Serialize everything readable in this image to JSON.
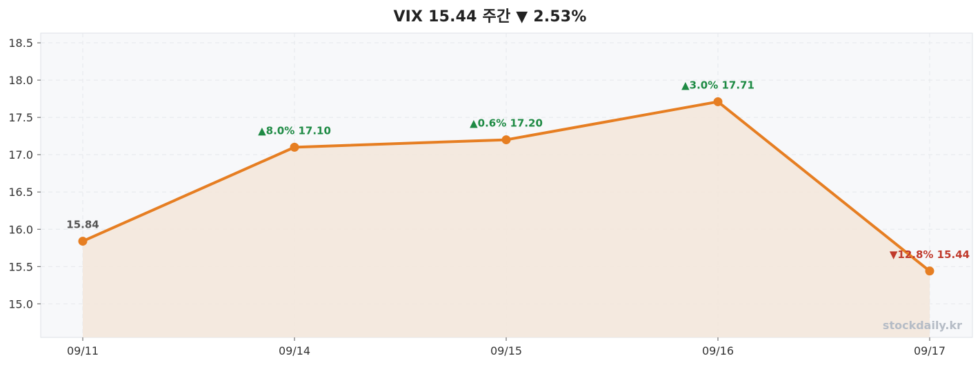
{
  "title": "VIX  15.44  주간 ▼ 2.53%",
  "watermark": "stockdaily.kr",
  "colors": {
    "line": "#e67e22",
    "area": "#f3e7dc",
    "plot_bg": "#f7f8fa",
    "up": "#1e8a44",
    "down": "#c0392b",
    "neutral": "#555555",
    "grid": "#e6e8ec"
  },
  "chart_data": {
    "type": "area",
    "title": "VIX  15.44  주간 ▼ 2.53%",
    "xlabel": "",
    "ylabel": "",
    "categories": [
      "09/11",
      "09/14",
      "09/15",
      "09/16",
      "09/17"
    ],
    "values": [
      15.84,
      17.1,
      17.2,
      17.71,
      15.44
    ],
    "point_labels": [
      "15.84",
      "▲8.0%  17.10",
      "▲0.6%  17.20",
      "▲3.0%  17.71",
      "▼12.8%  15.44"
    ],
    "label_directions": [
      "neutral",
      "up",
      "up",
      "up",
      "down"
    ],
    "ylim": [
      14.55,
      18.63
    ],
    "yticks": [
      "15.0",
      "15.5",
      "16.0",
      "16.5",
      "17.0",
      "17.5",
      "18.0",
      "18.5"
    ],
    "grid": true,
    "legend": "none"
  }
}
